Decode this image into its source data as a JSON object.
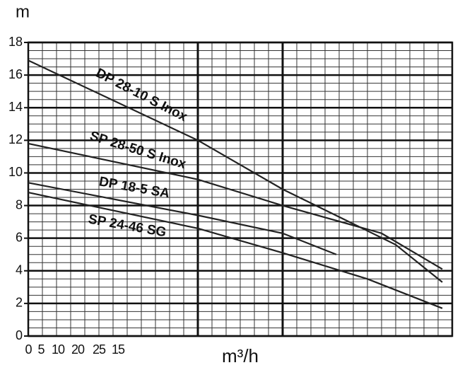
{
  "chart_data": {
    "type": "line",
    "y_label": "m",
    "x_label": "m³/h",
    "xlim": [
      0,
      30
    ],
    "ylim": [
      0,
      18
    ],
    "yticks": [
      0,
      2,
      4,
      6,
      8,
      10,
      12,
      14,
      16,
      18
    ],
    "xticks": [
      {
        "value": 0,
        "label": "0"
      },
      {
        "value": 0.9,
        "label": "5"
      },
      {
        "value": 2.1,
        "label": "10"
      },
      {
        "value": 3.5,
        "label": "20"
      },
      {
        "value": 5,
        "label": "25"
      },
      {
        "value": 6.35,
        "label": "15"
      }
    ],
    "grid": true,
    "x_major_grid": [
      12,
      18
    ],
    "series": [
      {
        "name": "DP 28-10 S Inox",
        "color": "#222222",
        "x": [
          0,
          12,
          18,
          26,
          29.3
        ],
        "values": [
          16.9,
          12,
          9,
          5.6,
          3.3
        ]
      },
      {
        "name": "SP 28-50 S Inox",
        "color": "#222222",
        "x": [
          0,
          12,
          18,
          25,
          29.3
        ],
        "values": [
          11.8,
          9.6,
          8,
          6.3,
          4.1
        ]
      },
      {
        "name": "DP 18-5 SA",
        "color": "#222222",
        "x": [
          0,
          12,
          18,
          21.8
        ],
        "values": [
          9.4,
          7.4,
          6.3,
          5.0
        ]
      },
      {
        "name": "SP 24-46 SG",
        "color": "#222222",
        "x": [
          0,
          12,
          18,
          24,
          29.3
        ],
        "values": [
          8.8,
          6.6,
          5.1,
          3.5,
          1.7
        ]
      }
    ]
  }
}
